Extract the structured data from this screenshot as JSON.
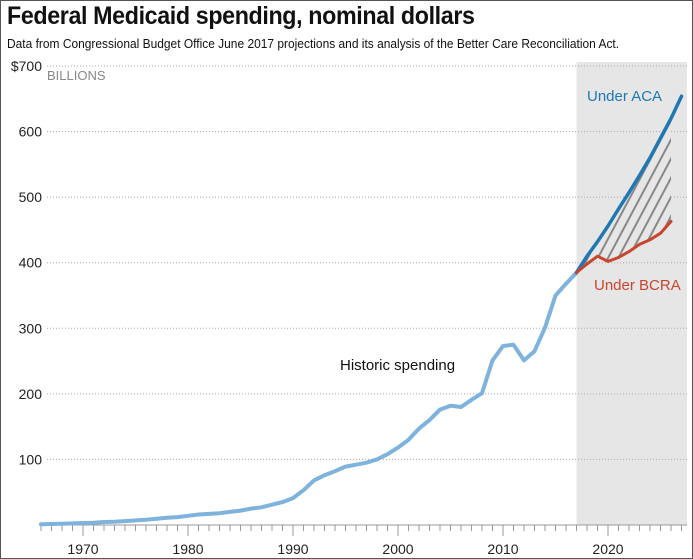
{
  "chart_data": {
    "type": "line",
    "title": "Federal Medicaid spending, nominal dollars",
    "subtitle": "Data from Congressional Budget Office June 2017 projections and its analysis of the Better Care Reconciliation Act.",
    "xlabel": "",
    "ylabel": "",
    "units_label": "BILLIONS",
    "ylim": [
      0,
      700
    ],
    "xlim": [
      1966,
      2027
    ],
    "y_ticks": [
      0,
      100,
      200,
      300,
      400,
      500,
      600,
      700
    ],
    "y_tick_labels": [
      "",
      "100",
      "200",
      "300",
      "400",
      "500",
      "600",
      "$700"
    ],
    "x_ticks": [
      1970,
      1980,
      1990,
      2000,
      2010,
      2020
    ],
    "x_tick_labels": [
      "1970",
      "1980",
      "1990",
      "2000",
      "2010",
      "2020"
    ],
    "grid": true,
    "projection_shade_start": 2017,
    "series": [
      {
        "name": "Historic spending",
        "color": "#7db3dc",
        "x": [
          1966,
          1967,
          1968,
          1969,
          1970,
          1971,
          1972,
          1973,
          1974,
          1975,
          1976,
          1977,
          1978,
          1979,
          1980,
          1981,
          1982,
          1983,
          1984,
          1985,
          1986,
          1987,
          1988,
          1989,
          1990,
          1991,
          1992,
          1993,
          1994,
          1995,
          1996,
          1997,
          1998,
          1999,
          2000,
          2001,
          2002,
          2003,
          2004,
          2005,
          2006,
          2007,
          2008,
          2009,
          2010,
          2011,
          2012,
          2013,
          2014,
          2015,
          2016,
          2017
        ],
        "values": [
          1,
          1.5,
          2,
          2.5,
          3,
          3.5,
          4.5,
          5,
          6,
          7,
          8,
          9.5,
          11,
          12,
          14,
          16,
          17,
          18,
          20,
          22,
          25,
          27,
          31,
          35,
          41,
          53,
          68,
          76,
          82,
          89,
          92,
          95,
          100,
          108,
          118,
          130,
          147,
          160,
          176,
          182,
          180,
          191,
          201,
          251,
          273,
          275,
          251,
          265,
          301,
          350,
          368,
          385
        ]
      },
      {
        "name": "Under ACA",
        "color": "#1f77b4",
        "x": [
          2017,
          2018,
          2019,
          2020,
          2021,
          2022,
          2023,
          2024,
          2025,
          2026,
          2027
        ],
        "values": [
          385,
          410,
          432,
          456,
          482,
          507,
          533,
          560,
          590,
          620,
          654
        ]
      },
      {
        "name": "Under BCRA",
        "color": "#c8452f",
        "x": [
          2017,
          2018,
          2019,
          2020,
          2021,
          2022,
          2023,
          2024,
          2025,
          2026
        ],
        "values": [
          385,
          398,
          410,
          402,
          408,
          417,
          428,
          435,
          445,
          463
        ]
      }
    ],
    "annotations": [
      {
        "text": "Historic spending",
        "color": "#111111"
      },
      {
        "text": "Under ACA",
        "color": "#1f77b4"
      },
      {
        "text": "Under BCRA",
        "color": "#c8452f"
      }
    ],
    "colors": {
      "shade": "#e6e6e6",
      "hatch": "#888888",
      "grid": "#aaaaaa",
      "axis": "#999999"
    }
  }
}
